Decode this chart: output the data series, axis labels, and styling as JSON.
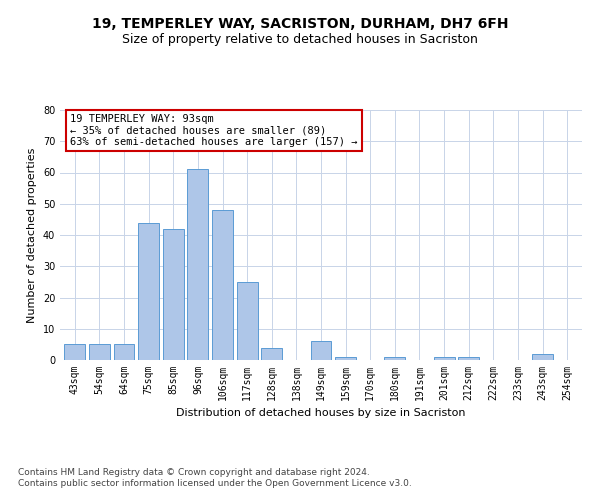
{
  "title": "19, TEMPERLEY WAY, SACRISTON, DURHAM, DH7 6FH",
  "subtitle": "Size of property relative to detached houses in Sacriston",
  "xlabel": "Distribution of detached houses by size in Sacriston",
  "ylabel": "Number of detached properties",
  "categories": [
    "43sqm",
    "54sqm",
    "64sqm",
    "75sqm",
    "85sqm",
    "96sqm",
    "106sqm",
    "117sqm",
    "128sqm",
    "138sqm",
    "149sqm",
    "159sqm",
    "170sqm",
    "180sqm",
    "191sqm",
    "201sqm",
    "212sqm",
    "222sqm",
    "233sqm",
    "243sqm",
    "254sqm"
  ],
  "values": [
    5,
    5,
    5,
    44,
    42,
    61,
    48,
    25,
    4,
    0,
    6,
    1,
    0,
    1,
    0,
    1,
    1,
    0,
    0,
    2,
    0
  ],
  "bar_color": "#aec6e8",
  "bar_edge_color": "#5b9bd5",
  "annotation_text": "19 TEMPERLEY WAY: 93sqm\n← 35% of detached houses are smaller (89)\n63% of semi-detached houses are larger (157) →",
  "annotation_box_color": "#ffffff",
  "annotation_box_edge_color": "#cc0000",
  "footer_line1": "Contains HM Land Registry data © Crown copyright and database right 2024.",
  "footer_line2": "Contains public sector information licensed under the Open Government Licence v3.0.",
  "ylim": [
    0,
    80
  ],
  "yticks": [
    0,
    10,
    20,
    30,
    40,
    50,
    60,
    70,
    80
  ],
  "bg_color": "#ffffff",
  "grid_color": "#c8d4e8",
  "title_fontsize": 10,
  "subtitle_fontsize": 9,
  "axis_label_fontsize": 8,
  "tick_fontsize": 7,
  "annotation_fontsize": 7.5,
  "footer_fontsize": 6.5
}
